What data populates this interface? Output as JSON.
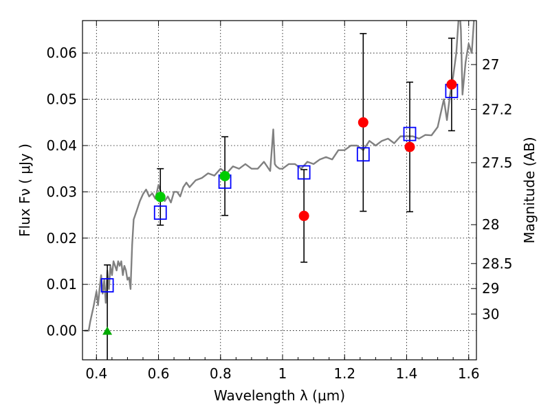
{
  "chart_data": {
    "type": "scatter",
    "xlabel": "Wavelength  λ (μm)",
    "ylabel": "Flux  Fν  ( μJy )",
    "ylabel_right": "Magnitude (AB)",
    "xlim": [
      0.355,
      1.625
    ],
    "ylim": [
      -0.0063,
      0.067
    ],
    "grid": true,
    "x_ticks": [
      0.4,
      0.6,
      0.8,
      1.0,
      1.2,
      1.4,
      1.6
    ],
    "x_tick_labels": [
      "0.4",
      "0.6",
      "0.8",
      "1",
      "1.2",
      "1.4",
      "1.6"
    ],
    "y_ticks": [
      0.0,
      0.01,
      0.02,
      0.03,
      0.04,
      0.05,
      0.06
    ],
    "y_tick_labels": [
      "0.00",
      "0.01",
      "0.02",
      "0.03",
      "0.04",
      "0.05",
      "0.06"
    ],
    "right_axis_ticks": [
      {
        "label": "27",
        "flux": 0.0575
      },
      {
        "label": "27.2",
        "flux": 0.0478
      },
      {
        "label": "27.5",
        "flux": 0.0363
      },
      {
        "label": "28",
        "flux": 0.0229
      },
      {
        "label": "28.5",
        "flux": 0.0145
      },
      {
        "label": "29",
        "flux": 0.0091
      },
      {
        "label": "30",
        "flux": 0.0036
      }
    ],
    "series": [
      {
        "kind": "model-spectrum",
        "color": "#808080",
        "x": [
          0.36,
          0.375,
          0.38,
          0.39,
          0.4,
          0.405,
          0.41,
          0.415,
          0.42,
          0.425,
          0.43,
          0.435,
          0.44,
          0.445,
          0.45,
          0.455,
          0.46,
          0.465,
          0.47,
          0.475,
          0.48,
          0.485,
          0.49,
          0.495,
          0.5,
          0.505,
          0.51,
          0.515,
          0.52,
          0.53,
          0.54,
          0.55,
          0.56,
          0.57,
          0.58,
          0.59,
          0.6,
          0.61,
          0.62,
          0.63,
          0.64,
          0.65,
          0.66,
          0.67,
          0.68,
          0.69,
          0.7,
          0.72,
          0.74,
          0.76,
          0.78,
          0.8,
          0.82,
          0.84,
          0.86,
          0.88,
          0.9,
          0.92,
          0.94,
          0.96,
          0.97,
          0.975,
          0.98,
          0.99,
          1.0,
          1.02,
          1.04,
          1.06,
          1.08,
          1.1,
          1.12,
          1.14,
          1.16,
          1.18,
          1.2,
          1.22,
          1.24,
          1.26,
          1.28,
          1.3,
          1.32,
          1.34,
          1.36,
          1.38,
          1.4,
          1.42,
          1.44,
          1.46,
          1.48,
          1.5,
          1.52,
          1.53,
          1.54,
          1.55,
          1.56,
          1.57,
          1.575,
          1.58,
          1.59,
          1.6,
          1.61,
          1.62
        ],
        "y": [
          0.0,
          0.0,
          0.002,
          0.005,
          0.0085,
          0.0055,
          0.009,
          0.012,
          0.008,
          0.011,
          0.006,
          0.013,
          0.009,
          0.014,
          0.012,
          0.015,
          0.014,
          0.013,
          0.015,
          0.014,
          0.015,
          0.012,
          0.014,
          0.013,
          0.011,
          0.0115,
          0.009,
          0.0185,
          0.024,
          0.026,
          0.028,
          0.0295,
          0.0305,
          0.029,
          0.0297,
          0.0285,
          0.0315,
          0.0295,
          0.028,
          0.029,
          0.0277,
          0.03,
          0.03,
          0.029,
          0.031,
          0.032,
          0.031,
          0.0325,
          0.033,
          0.034,
          0.0335,
          0.035,
          0.034,
          0.0355,
          0.035,
          0.036,
          0.035,
          0.035,
          0.0365,
          0.0345,
          0.0435,
          0.036,
          0.0355,
          0.035,
          0.035,
          0.036,
          0.036,
          0.035,
          0.0365,
          0.036,
          0.037,
          0.0375,
          0.037,
          0.039,
          0.039,
          0.04,
          0.04,
          0.039,
          0.041,
          0.04,
          0.041,
          0.0415,
          0.0405,
          0.042,
          0.042,
          0.042,
          0.0415,
          0.0423,
          0.0422,
          0.044,
          0.05,
          0.0455,
          0.051,
          0.055,
          0.06,
          0.07,
          0.065,
          0.051,
          0.058,
          0.062,
          0.06,
          0.07
        ]
      },
      {
        "kind": "model-photometry",
        "marker": "open-square",
        "color": "#0000ff",
        "x": [
          0.435,
          0.606,
          0.814,
          1.069,
          1.26,
          1.41,
          1.545
        ],
        "y": [
          0.0098,
          0.0255,
          0.0322,
          0.0342,
          0.0381,
          0.0425,
          0.0518
        ]
      },
      {
        "kind": "observed-detection-acs",
        "marker": "circle",
        "color": "#00cc00",
        "x": [
          0.606,
          0.814
        ],
        "y": [
          0.0289,
          0.0334
        ],
        "yerr": [
          0.0061,
          0.0085
        ]
      },
      {
        "kind": "observed-detection-wfc3",
        "marker": "circle",
        "color": "#ff0000",
        "x": [
          1.069,
          1.26,
          1.41,
          1.545
        ],
        "y": [
          0.0248,
          0.045,
          0.0397,
          0.0532
        ],
        "yerr": [
          0.01,
          0.0192,
          0.014,
          0.01
        ]
      },
      {
        "kind": "observed-nondetection",
        "marker": "triangle",
        "color": "#00aa00",
        "x": [
          0.435
        ],
        "y": [
          0.0
        ],
        "yerr": [
          0.0142
        ]
      }
    ]
  }
}
